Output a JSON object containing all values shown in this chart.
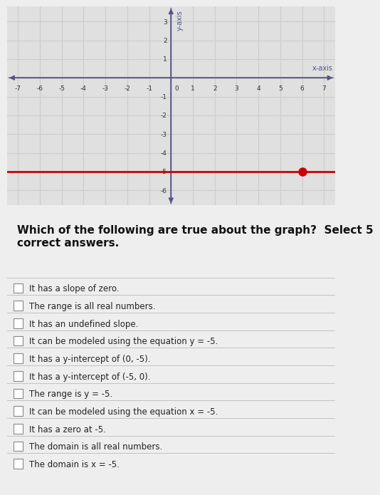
{
  "graph": {
    "xlim": [
      -7.5,
      7.5
    ],
    "ylim": [
      -6.8,
      3.8
    ],
    "xticks": [
      -7,
      -6,
      -5,
      -4,
      -3,
      -2,
      -1,
      0,
      1,
      2,
      3,
      4,
      5,
      6,
      7
    ],
    "yticks": [
      -6,
      -5,
      -4,
      -3,
      -2,
      -1,
      0,
      1,
      2,
      3
    ],
    "xlabel": "x-axis",
    "ylabel": "y-axis",
    "line_y": -5,
    "line_color": "#cc0000",
    "dot_x": 6,
    "dot_y": -5,
    "dot_color": "#cc0000",
    "dot_size": 8,
    "grid_color": "#cccccc",
    "bg_color": "#e0e0e0",
    "axis_color": "#555588"
  },
  "question": "Which of the following are true about the graph?  Select 5\ncorrect answers.",
  "options": [
    "It has a slope of zero.",
    "The range is all real numbers.",
    "It has an undefined slope.",
    "It can be modeled using the equation y = -5.",
    "It has a y-intercept of (0, -5).",
    "It has a y-intercept of (-5, 0).",
    "The range is y = -5.",
    "It can be modeled using the equation x = -5.",
    "It has a zero at -5.",
    "The domain is all real numbers.",
    "The domain is x = -5."
  ],
  "question_fontsize": 11,
  "option_fontsize": 8.5,
  "figure_bg": "#eeeeee"
}
